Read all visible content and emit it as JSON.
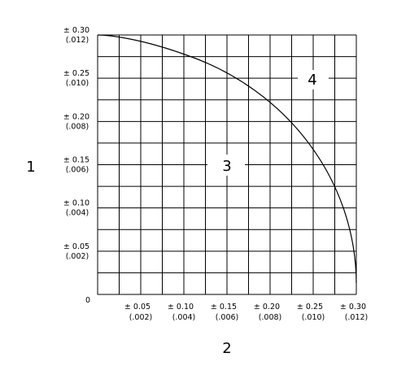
{
  "axis_y": {
    "labels": [
      {
        "mm": "± 0.30",
        "inch": "(.012)"
      },
      {
        "mm": "± 0.25",
        "inch": "(.010)"
      },
      {
        "mm": "± 0.20",
        "inch": "(.008)"
      },
      {
        "mm": "± 0.15",
        "inch": "(.006)"
      },
      {
        "mm": "± 0.10",
        "inch": "(.004)"
      },
      {
        "mm": "± 0.05",
        "inch": "(.002)"
      }
    ]
  },
  "axis_x": {
    "labels": [
      {
        "mm": "± 0.05",
        "inch": "(.002)"
      },
      {
        "mm": "± 0.10",
        "inch": "(.004)"
      },
      {
        "mm": "± 0.15",
        "inch": "(.006)"
      },
      {
        "mm": "± 0.20",
        "inch": "(.008)"
      },
      {
        "mm": "± 0.25",
        "inch": "(.010)"
      },
      {
        "mm": "± 0.30",
        "inch": "(.012)"
      }
    ]
  },
  "origin": "0",
  "callouts": [
    "1",
    "2",
    "3",
    "4"
  ]
}
